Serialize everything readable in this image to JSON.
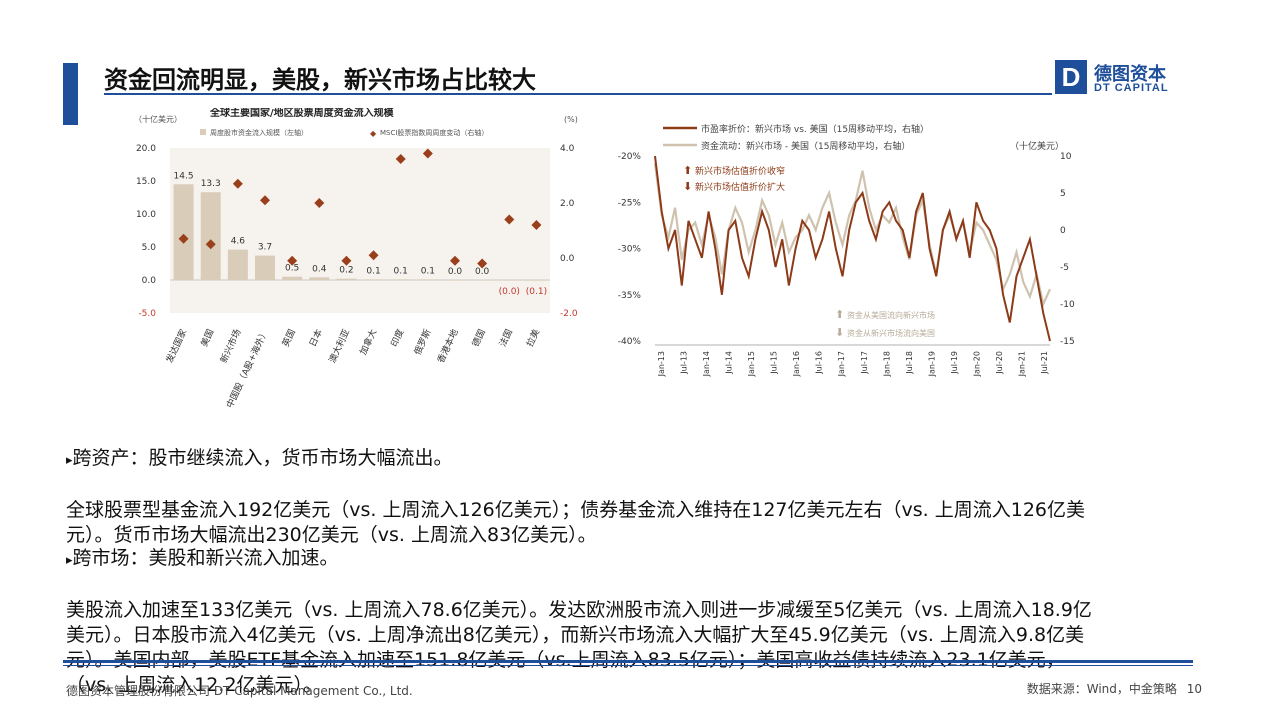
{
  "header": {
    "title": "资金回流明显，美股，新兴市场占比较大",
    "logo_mark": "D",
    "logo_cn": "德图资本",
    "logo_en": "DT CAPITAL"
  },
  "colors": {
    "accent": "#1f4e9a",
    "bar": "#d9ccb9",
    "diamond": "#9a3f1c",
    "line_dark": "#8c3a17",
    "line_light": "#cfc2ae"
  },
  "chart_data": [
    {
      "type": "bar",
      "title": "全球主要国家/地区股票周度资金流入规模",
      "y_left_unit": "（十亿美元）",
      "y_right_unit": "(%)",
      "legend": [
        "周度股市资金流入规模（左轴）",
        "MSCI股票指数周周度变动（右轴）"
      ],
      "categories": [
        "发达国家",
        "美国",
        "新兴市场",
        "中国股（A股+海外）",
        "英国",
        "日本",
        "澳大利亚",
        "加拿大",
        "印度",
        "俄罗斯",
        "香港本地",
        "德国",
        "法国",
        "拉美"
      ],
      "bar_values": [
        14.5,
        13.3,
        4.6,
        3.7,
        0.5,
        0.4,
        0.2,
        0.1,
        0.1,
        0.1,
        0.0,
        0.0,
        0.0,
        -0.1
      ],
      "bar_labels": [
        "14.5",
        "13.3",
        "4.6",
        "3.7",
        "0.5",
        "0.4",
        "0.2",
        "0.1",
        "0.1",
        "0.1",
        "0.0",
        "0.0",
        "(0.0)",
        "(0.1)"
      ],
      "diamond_values": [
        0.7,
        0.5,
        2.7,
        2.1,
        -0.1,
        2.0,
        -0.1,
        0.1,
        3.6,
        3.8,
        -0.1,
        -0.2,
        1.4,
        1.2
      ],
      "ylim_left": [
        -5,
        20
      ],
      "left_ticks": [
        "-5.0",
        "0.0",
        "5.0",
        "10.0",
        "15.0",
        "20.0"
      ],
      "ylim_right": [
        -2,
        4
      ],
      "right_ticks": [
        "-2.0",
        "0.0",
        "2.0",
        "4.0"
      ]
    },
    {
      "type": "line",
      "legend": [
        "市盈率折价：新兴市场 vs. 美国（15周移动平均，右轴）",
        "资金流动：新兴市场 - 美国（15周移动平均，右轴）"
      ],
      "right_unit": "（十亿美元）",
      "annotations": [
        "新兴市场估值折价收窄",
        "新兴市场估值折价扩大",
        "资金从美国流向新兴市场",
        "资金从新兴市场流向美国"
      ],
      "x_ticks": [
        "Jan-13",
        "Jul-13",
        "Jan-14",
        "Jul-14",
        "Jan-15",
        "Jul-15",
        "Jan-16",
        "Jul-16",
        "Jan-17",
        "Jul-17",
        "Jan-18",
        "Jul-18",
        "Jan-19",
        "Jul-19",
        "Jan-20",
        "Jul-20",
        "Jan-21",
        "Jul-21"
      ],
      "left_ticks": [
        "-20%",
        "-25%",
        "-30%",
        "-35%",
        "-40%"
      ],
      "left_range": [
        -40,
        -20
      ],
      "right_ticks": [
        "10",
        "5",
        "0",
        "-5",
        "-10",
        "-15"
      ],
      "right_range": [
        -15,
        10
      ],
      "series": [
        {
          "name": "市盈率折价：新兴市场 vs. 美国（15周移动平均，右轴）",
          "axis": "left",
          "values": [
            -20,
            -26,
            -30,
            -28,
            -34,
            -27,
            -29,
            -31,
            -26,
            -30,
            -35,
            -28,
            -27,
            -31,
            -33,
            -29,
            -26,
            -28,
            -32,
            -29,
            -34,
            -30,
            -27,
            -28,
            -31,
            -29,
            -26,
            -30,
            -33,
            -28,
            -25,
            -24,
            -27,
            -29,
            -26,
            -25,
            -27,
            -28,
            -31,
            -26,
            -24,
            -30,
            -33,
            -28,
            -26,
            -29,
            -27,
            -31,
            -25,
            -27,
            -28,
            -30,
            -35,
            -38,
            -33,
            -31,
            -29,
            -33,
            -37,
            -40
          ]
        },
        {
          "name": "资金流动：新兴市场 - 美国（15周移动平均，右轴）",
          "axis": "right",
          "values": [
            9,
            2,
            -1,
            3,
            -4,
            0,
            1,
            -2,
            2,
            -1,
            -6,
            0,
            3,
            1,
            -3,
            0,
            4,
            2,
            -2,
            1,
            -3,
            -1,
            0,
            2,
            0,
            3,
            5,
            1,
            -2,
            2,
            4,
            8,
            3,
            0,
            2,
            1,
            3,
            -1,
            -4,
            2,
            4,
            -2,
            -6,
            0,
            2,
            -1,
            1,
            -3,
            1,
            0,
            -2,
            -4,
            -8,
            -6,
            -3,
            -7,
            -9,
            -6,
            -10,
            -8
          ]
        }
      ]
    }
  ],
  "sections": [
    {
      "heading": "跨资产：股市继续流入，货币市场大幅流出。",
      "text": "全球股票型基金流入192亿美元（vs. 上周流入126亿美元）；债券基金流入维持在127亿美元左右（vs. 上周流入126亿美\n元）。货币市场大幅流出230亿美元（vs. 上周流入83亿美元）。"
    },
    {
      "heading": "跨市场：美股和新兴流入加速。",
      "text": "美股流入加速至133亿美元（vs. 上周流入78.6亿美元）。发达欧洲股市流入则进一步减缓至5亿美元（vs. 上周流入18.9亿\n美元）。日本股市流入4亿美元（vs. 上周净流出8亿美元），而新兴市场流入大幅扩大至45.9亿美元（vs. 上周流入9.8亿美\n元）。美国内部，美股ETF基金流入加速至151.8亿美元（vs.上周流入83.5亿元）；美国高收益债持续流入23.1亿美元，\n（vs. 上周流入12.2亿美元）。"
    }
  ],
  "footer": {
    "company": "德图资本管理股份有限公司  DT Capital Management  Co., Ltd.",
    "source": "数据来源：Wind，中金策略",
    "page": "10"
  }
}
